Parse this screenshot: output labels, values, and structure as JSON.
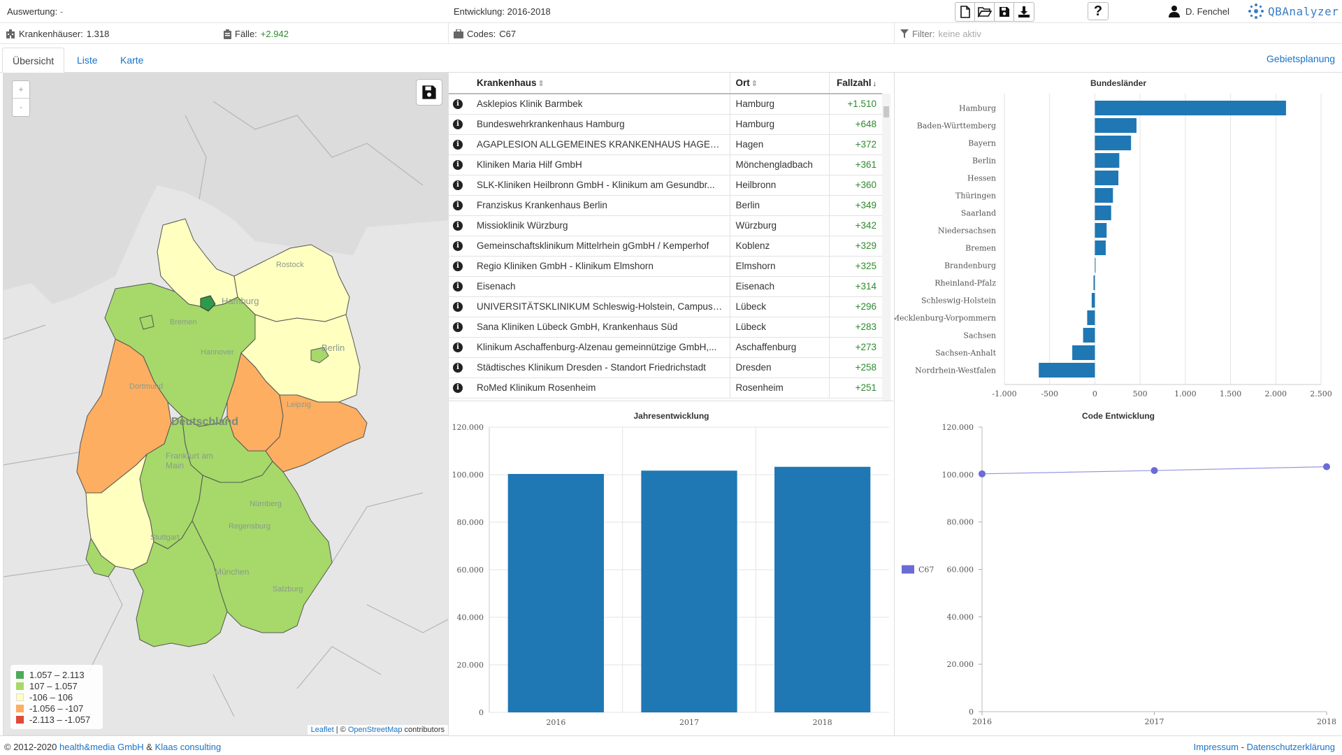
{
  "topbar": {
    "auswertung_label": "Auswertung:",
    "auswertung_value": "-",
    "entwicklung_label": "Entwicklung:",
    "entwicklung_value": "2016-2018",
    "user_name": "D. Fenchel",
    "logo_text": "QBAnalyzer",
    "help_label": "?"
  },
  "infobar": {
    "krankenhaeuser_label": "Krankenhäuser:",
    "krankenhaeuser_value": "1.318",
    "faelle_label": "Fälle:",
    "faelle_value": "+2.942",
    "codes_label": "Codes:",
    "codes_value": "C67",
    "filter_label": "Filter:",
    "filter_value": "keine aktiv"
  },
  "tabs": [
    {
      "label": "Übersicht",
      "active": true
    },
    {
      "label": "Liste",
      "active": false
    },
    {
      "label": "Karte",
      "active": false
    }
  ],
  "gebietsplanung_label": "Gebietsplanung",
  "map": {
    "zoom_in": "+",
    "zoom_out": "-",
    "legend": [
      {
        "label": "1.057 – 2.113",
        "color": "#4daa57"
      },
      {
        "label": "107 – 1.057",
        "color": "#a6d96a"
      },
      {
        "label": "-106 – 106",
        "color": "#ffffbf"
      },
      {
        "label": "-1.056 – -107",
        "color": "#fdae61"
      },
      {
        "label": "-2.113 – -1.057",
        "color": "#e04a3a"
      }
    ],
    "labels": [
      {
        "text": "Rostock",
        "k": "rostock"
      },
      {
        "text": "Hamburg",
        "k": "hamburg"
      },
      {
        "text": "Bremen",
        "k": "bremen"
      },
      {
        "text": "Hannover",
        "k": "hannover"
      },
      {
        "text": "Berlin",
        "k": "berlin"
      },
      {
        "text": "Dortmund",
        "k": "dortmund"
      },
      {
        "text": "Deutschland",
        "k": "de"
      },
      {
        "text": "Leipzig",
        "k": "leipzig"
      },
      {
        "text": "Frankfurt am Main",
        "k": "ffm"
      },
      {
        "text": "Nürnberg",
        "k": "nbg"
      },
      {
        "text": "Regensburg",
        "k": "rgb"
      },
      {
        "text": "Stuttgart",
        "k": "stg"
      },
      {
        "text": "München",
        "k": "muc"
      },
      {
        "text": "Salzburg",
        "k": "sbg"
      }
    ],
    "attrib_leaflet": "Leaflet",
    "attrib_sep": " | © ",
    "attrib_osm": "OpenStreetMap",
    "attrib_contrib": " contributors"
  },
  "table": {
    "headers": {
      "krankenhaus": "Krankenhaus",
      "ort": "Ort",
      "fallzahl": "Fallzahl"
    },
    "rows": [
      {
        "name": "Asklepios Klinik Barmbek",
        "ort": "Hamburg",
        "fallzahl": "+1.510"
      },
      {
        "name": "Bundeswehrkrankenhaus Hamburg",
        "ort": "Hamburg",
        "fallzahl": "+648"
      },
      {
        "name": "AGAPLESION ALLGEMEINES KRANKENHAUS HAGEN ge...",
        "ort": "Hagen",
        "fallzahl": "+372"
      },
      {
        "name": "Kliniken Maria Hilf GmbH",
        "ort": "Mönchengladbach",
        "fallzahl": "+361"
      },
      {
        "name": "SLK-Kliniken Heilbronn GmbH - Klinikum am Gesundbr...",
        "ort": "Heilbronn",
        "fallzahl": "+360"
      },
      {
        "name": "Franziskus Krankenhaus Berlin",
        "ort": "Berlin",
        "fallzahl": "+349"
      },
      {
        "name": "Missioklinik Würzburg",
        "ort": "Würzburg",
        "fallzahl": "+342"
      },
      {
        "name": "Gemeinschaftsklinikum Mittelrhein gGmbH / Kemperhof",
        "ort": "Koblenz",
        "fallzahl": "+329"
      },
      {
        "name": "Regio Kliniken GmbH - Klinikum Elmshorn",
        "ort": "Elmshorn",
        "fallzahl": "+325"
      },
      {
        "name": "Eisenach",
        "ort": "Eisenach",
        "fallzahl": "+314"
      },
      {
        "name": "UNIVERSITÄTSKLINIKUM Schleswig-Holstein, Campus L...",
        "ort": "Lübeck",
        "fallzahl": "+296"
      },
      {
        "name": "Sana Kliniken Lübeck GmbH, Krankenhaus Süd",
        "ort": "Lübeck",
        "fallzahl": "+283"
      },
      {
        "name": "Klinikum Aschaffenburg-Alzenau gemeinnützige GmbH,...",
        "ort": "Aschaffenburg",
        "fallzahl": "+273"
      },
      {
        "name": "Städtisches Klinikum Dresden - Standort Friedrichstadt",
        "ort": "Dresden",
        "fallzahl": "+258"
      },
      {
        "name": "RoMed Klinikum Rosenheim",
        "ort": "Rosenheim",
        "fallzahl": "+251"
      }
    ]
  },
  "chart_data": [
    {
      "type": "bar",
      "orientation": "horizontal",
      "title": "Bundesländer",
      "categories": [
        "Hamburg",
        "Baden-Württemberg",
        "Bayern",
        "Berlin",
        "Hessen",
        "Thüringen",
        "Saarland",
        "Niedersachsen",
        "Bremen",
        "Brandenburg",
        "Rheinland-Pfalz",
        "Schleswig-Holstein",
        "Mecklenburg-Vorpommern",
        "Sachsen",
        "Sachsen-Anhalt",
        "Nordrhein-Westfalen"
      ],
      "values": [
        2113,
        460,
        400,
        270,
        260,
        200,
        180,
        130,
        120,
        5,
        -15,
        -35,
        -85,
        -130,
        -250,
        -620
      ],
      "xlim": [
        -1000,
        2500
      ],
      "ticks": [
        "-1.000",
        "-500",
        "0",
        "500",
        "1.000",
        "1.500",
        "2.000",
        "2.500"
      ],
      "tick_values": [
        -1000,
        -500,
        0,
        500,
        1000,
        1500,
        2000,
        2500
      ],
      "grid": true,
      "color": "#1f77b4"
    },
    {
      "type": "bar",
      "title": "Jahresentwicklung",
      "categories": [
        "2016",
        "2017",
        "2018"
      ],
      "values": [
        100300,
        101700,
        103300
      ],
      "ylim": [
        0,
        120000
      ],
      "ticks": [
        "0",
        "20.000",
        "40.000",
        "60.000",
        "80.000",
        "100.000",
        "120.000"
      ],
      "tick_values": [
        0,
        20000,
        40000,
        60000,
        80000,
        100000,
        120000
      ],
      "grid": true,
      "color": "#1f77b4"
    },
    {
      "type": "line",
      "title": "Code Entwicklung",
      "x": [
        "2016",
        "2017",
        "2018"
      ],
      "series": [
        {
          "name": "C67",
          "values": [
            100300,
            101700,
            103300
          ],
          "color": "#6b6bd6"
        }
      ],
      "ylim": [
        0,
        120000
      ],
      "ticks": [
        "0",
        "20.000",
        "40.000",
        "60.000",
        "80.000",
        "100.000",
        "120.000"
      ],
      "tick_values": [
        0,
        20000,
        40000,
        60000,
        80000,
        100000,
        120000
      ],
      "legend": "left",
      "grid": false
    }
  ],
  "footer": {
    "copyright": "© 2012-2020",
    "company1": "health&media GmbH",
    "amp": " & ",
    "company2": "Klaas consulting",
    "impressum": "Impressum",
    "dot": " - ",
    "datenschutz": "Datenschutzerklärung"
  }
}
